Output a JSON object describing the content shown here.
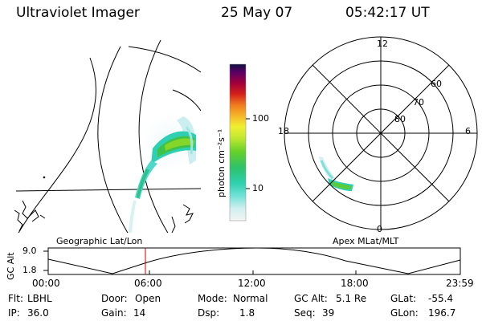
{
  "header": {
    "title": "Ultraviolet Imager",
    "date": "25 May 07",
    "time": "05:42:17 UT"
  },
  "colorbar": {
    "label": "photon cm⁻²s⁻¹",
    "ticks": [
      "100",
      "10"
    ]
  },
  "polar": {
    "mlt_labels": [
      "12",
      "18",
      "6",
      "0"
    ],
    "lat_labels": [
      "60",
      "70",
      "80"
    ]
  },
  "panel_labels": {
    "left": "Geographic Lat/Lon",
    "right": "Apex MLat/MLT"
  },
  "orbit": {
    "ylabel": "GC Alt",
    "yticks": [
      "9.0",
      "1.8"
    ],
    "xticks": [
      "00:00",
      "06:00",
      "12:00",
      "18:00",
      "23:59"
    ],
    "marker_color": "#cc0000"
  },
  "footer": {
    "row1": [
      {
        "key": "Flt:",
        "value": "LBHL"
      },
      {
        "key": "Door:",
        "value": "Open"
      },
      {
        "key": "Mode:",
        "value": "Normal"
      },
      {
        "key": "GC Alt:",
        "value": "5.1 Re"
      },
      {
        "key": "GLat:",
        "value": "-55.4"
      }
    ],
    "row2": [
      {
        "key": "IP:",
        "value": "36.0"
      },
      {
        "key": "Gain:",
        "value": "14"
      },
      {
        "key": "Dsp:",
        "value": "1.8"
      },
      {
        "key": "Seq:",
        "value": "39"
      },
      {
        "key": "GLon:",
        "value": "196.7"
      }
    ]
  }
}
